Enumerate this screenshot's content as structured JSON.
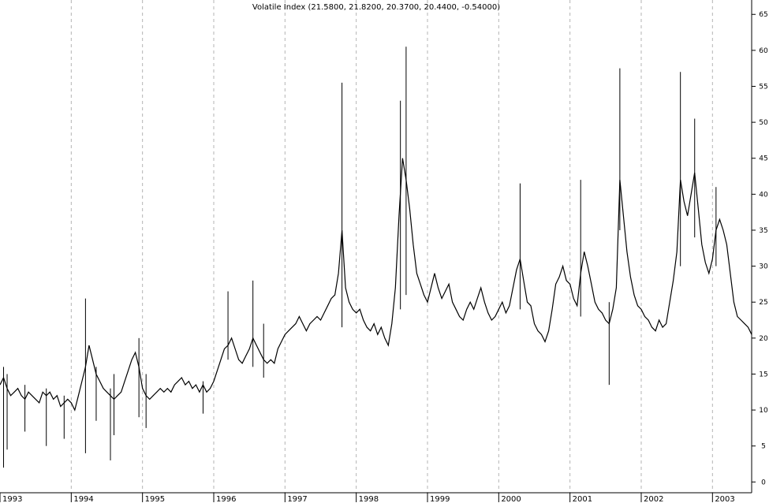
{
  "chart_data": {
    "type": "line",
    "title": "Volatile Index (21.5800, 21.8200, 20.3700, 20.4400, -0.54000)",
    "xlabel": "",
    "ylabel": "",
    "x_ticks": [
      "1993",
      "1994",
      "1995",
      "1996",
      "1997",
      "1998",
      "1999",
      "2000",
      "2001",
      "2002",
      "2003"
    ],
    "x_range": [
      1993.0,
      2003.55
    ],
    "y_ticks": [
      0,
      5,
      10,
      15,
      20,
      25,
      30,
      35,
      40,
      45,
      50,
      55,
      60,
      65
    ],
    "ylim": [
      -1.5,
      67
    ],
    "grid": {
      "vertical": true,
      "horizontal": false
    },
    "axis_position": "right",
    "colors": {
      "line": "#000000",
      "grid": "#b4b4b4",
      "axis": "#000000"
    },
    "series": [
      {
        "values": [
          [
            1993.0,
            13.5
          ],
          [
            1993.05,
            14.5
          ],
          [
            1993.1,
            13.0
          ],
          [
            1993.15,
            12.0
          ],
          [
            1993.2,
            12.5
          ],
          [
            1993.25,
            13.0
          ],
          [
            1993.3,
            12.0
          ],
          [
            1993.35,
            11.5
          ],
          [
            1993.4,
            12.5
          ],
          [
            1993.45,
            12.0
          ],
          [
            1993.5,
            11.5
          ],
          [
            1993.55,
            11.0
          ],
          [
            1993.6,
            12.5
          ],
          [
            1993.65,
            12.0
          ],
          [
            1993.7,
            12.5
          ],
          [
            1993.75,
            11.5
          ],
          [
            1993.8,
            12.0
          ],
          [
            1993.85,
            10.5
          ],
          [
            1993.9,
            11.0
          ],
          [
            1993.95,
            11.5
          ],
          [
            1994.0,
            11.0
          ],
          [
            1994.05,
            10.0
          ],
          [
            1994.1,
            12.0
          ],
          [
            1994.15,
            14.0
          ],
          [
            1994.2,
            16.0
          ],
          [
            1994.25,
            19.0
          ],
          [
            1994.3,
            17.0
          ],
          [
            1994.35,
            15.0
          ],
          [
            1994.4,
            14.0
          ],
          [
            1994.45,
            13.0
          ],
          [
            1994.5,
            12.5
          ],
          [
            1994.55,
            12.0
          ],
          [
            1994.6,
            11.5
          ],
          [
            1994.65,
            12.0
          ],
          [
            1994.7,
            12.5
          ],
          [
            1994.75,
            14.0
          ],
          [
            1994.8,
            15.5
          ],
          [
            1994.85,
            17.0
          ],
          [
            1994.9,
            18.0
          ],
          [
            1994.95,
            16.0
          ],
          [
            1995.0,
            13.0
          ],
          [
            1995.05,
            12.0
          ],
          [
            1995.1,
            11.5
          ],
          [
            1995.15,
            12.0
          ],
          [
            1995.2,
            12.5
          ],
          [
            1995.25,
            13.0
          ],
          [
            1995.3,
            12.5
          ],
          [
            1995.35,
            13.0
          ],
          [
            1995.4,
            12.5
          ],
          [
            1995.45,
            13.5
          ],
          [
            1995.5,
            14.0
          ],
          [
            1995.55,
            14.5
          ],
          [
            1995.6,
            13.5
          ],
          [
            1995.65,
            14.0
          ],
          [
            1995.7,
            13.0
          ],
          [
            1995.75,
            13.5
          ],
          [
            1995.8,
            12.5
          ],
          [
            1995.85,
            13.5
          ],
          [
            1995.9,
            12.5
          ],
          [
            1995.95,
            13.0
          ],
          [
            1996.0,
            14.0
          ],
          [
            1996.05,
            15.5
          ],
          [
            1996.1,
            17.0
          ],
          [
            1996.15,
            18.5
          ],
          [
            1996.2,
            19.0
          ],
          [
            1996.25,
            20.0
          ],
          [
            1996.3,
            18.5
          ],
          [
            1996.35,
            17.0
          ],
          [
            1996.4,
            16.5
          ],
          [
            1996.45,
            17.5
          ],
          [
            1996.5,
            18.5
          ],
          [
            1996.55,
            20.0
          ],
          [
            1996.6,
            19.0
          ],
          [
            1996.65,
            18.0
          ],
          [
            1996.7,
            17.0
          ],
          [
            1996.75,
            16.5
          ],
          [
            1996.8,
            17.0
          ],
          [
            1996.85,
            16.5
          ],
          [
            1996.9,
            18.5
          ],
          [
            1996.95,
            19.5
          ],
          [
            1997.0,
            20.5
          ],
          [
            1997.05,
            21.0
          ],
          [
            1997.1,
            21.5
          ],
          [
            1997.15,
            22.0
          ],
          [
            1997.2,
            23.0
          ],
          [
            1997.25,
            22.0
          ],
          [
            1997.3,
            21.0
          ],
          [
            1997.35,
            22.0
          ],
          [
            1997.4,
            22.5
          ],
          [
            1997.45,
            23.0
          ],
          [
            1997.5,
            22.5
          ],
          [
            1997.55,
            23.5
          ],
          [
            1997.6,
            24.5
          ],
          [
            1997.65,
            25.5
          ],
          [
            1997.7,
            26.0
          ],
          [
            1997.75,
            29.0
          ],
          [
            1997.8,
            35.0
          ],
          [
            1997.85,
            27.0
          ],
          [
            1997.9,
            25.0
          ],
          [
            1997.95,
            24.0
          ],
          [
            1998.0,
            23.5
          ],
          [
            1998.05,
            24.0
          ],
          [
            1998.1,
            22.5
          ],
          [
            1998.15,
            21.5
          ],
          [
            1998.2,
            21.0
          ],
          [
            1998.25,
            22.0
          ],
          [
            1998.3,
            20.5
          ],
          [
            1998.35,
            21.5
          ],
          [
            1998.4,
            20.0
          ],
          [
            1998.45,
            19.0
          ],
          [
            1998.5,
            22.0
          ],
          [
            1998.55,
            27.0
          ],
          [
            1998.6,
            37.0
          ],
          [
            1998.65,
            45.0
          ],
          [
            1998.7,
            42.0
          ],
          [
            1998.75,
            38.0
          ],
          [
            1998.8,
            33.0
          ],
          [
            1998.85,
            29.0
          ],
          [
            1998.9,
            27.5
          ],
          [
            1998.95,
            26.0
          ],
          [
            1999.0,
            25.0
          ],
          [
            1999.05,
            27.0
          ],
          [
            1999.1,
            29.0
          ],
          [
            1999.15,
            27.0
          ],
          [
            1999.2,
            25.5
          ],
          [
            1999.25,
            26.5
          ],
          [
            1999.3,
            27.5
          ],
          [
            1999.35,
            25.0
          ],
          [
            1999.4,
            24.0
          ],
          [
            1999.45,
            23.0
          ],
          [
            1999.5,
            22.5
          ],
          [
            1999.55,
            24.0
          ],
          [
            1999.6,
            25.0
          ],
          [
            1999.65,
            24.0
          ],
          [
            1999.7,
            25.5
          ],
          [
            1999.75,
            27.0
          ],
          [
            1999.8,
            25.0
          ],
          [
            1999.85,
            23.5
          ],
          [
            1999.9,
            22.5
          ],
          [
            1999.95,
            23.0
          ],
          [
            2000.0,
            24.0
          ],
          [
            2000.05,
            25.0
          ],
          [
            2000.1,
            23.5
          ],
          [
            2000.15,
            24.5
          ],
          [
            2000.2,
            27.0
          ],
          [
            2000.25,
            29.5
          ],
          [
            2000.3,
            31.0
          ],
          [
            2000.35,
            28.0
          ],
          [
            2000.4,
            25.0
          ],
          [
            2000.45,
            24.5
          ],
          [
            2000.5,
            22.0
          ],
          [
            2000.55,
            21.0
          ],
          [
            2000.6,
            20.5
          ],
          [
            2000.65,
            19.5
          ],
          [
            2000.7,
            21.0
          ],
          [
            2000.75,
            24.0
          ],
          [
            2000.8,
            27.5
          ],
          [
            2000.85,
            28.5
          ],
          [
            2000.9,
            30.0
          ],
          [
            2000.95,
            28.0
          ],
          [
            2001.0,
            27.5
          ],
          [
            2001.05,
            25.5
          ],
          [
            2001.1,
            24.5
          ],
          [
            2001.15,
            29.0
          ],
          [
            2001.2,
            32.0
          ],
          [
            2001.25,
            30.0
          ],
          [
            2001.3,
            27.5
          ],
          [
            2001.35,
            25.0
          ],
          [
            2001.4,
            24.0
          ],
          [
            2001.45,
            23.5
          ],
          [
            2001.5,
            22.5
          ],
          [
            2001.55,
            22.0
          ],
          [
            2001.6,
            24.0
          ],
          [
            2001.65,
            27.0
          ],
          [
            2001.7,
            42.0
          ],
          [
            2001.75,
            37.0
          ],
          [
            2001.8,
            32.0
          ],
          [
            2001.85,
            28.5
          ],
          [
            2001.9,
            26.0
          ],
          [
            2001.95,
            24.5
          ],
          [
            2002.0,
            24.0
          ],
          [
            2002.05,
            23.0
          ],
          [
            2002.1,
            22.5
          ],
          [
            2002.15,
            21.5
          ],
          [
            2002.2,
            21.0
          ],
          [
            2002.25,
            22.5
          ],
          [
            2002.3,
            21.5
          ],
          [
            2002.35,
            22.0
          ],
          [
            2002.4,
            25.0
          ],
          [
            2002.45,
            28.0
          ],
          [
            2002.5,
            32.0
          ],
          [
            2002.55,
            42.0
          ],
          [
            2002.6,
            39.0
          ],
          [
            2002.65,
            37.0
          ],
          [
            2002.7,
            40.0
          ],
          [
            2002.75,
            43.0
          ],
          [
            2002.8,
            38.0
          ],
          [
            2002.85,
            33.0
          ],
          [
            2002.9,
            30.5
          ],
          [
            2002.95,
            29.0
          ],
          [
            2003.0,
            31.0
          ],
          [
            2003.05,
            35.0
          ],
          [
            2003.1,
            36.5
          ],
          [
            2003.15,
            35.0
          ],
          [
            2003.2,
            33.0
          ],
          [
            2003.25,
            29.0
          ],
          [
            2003.3,
            25.0
          ],
          [
            2003.35,
            23.0
          ],
          [
            2003.4,
            22.5
          ],
          [
            2003.45,
            22.0
          ],
          [
            2003.5,
            21.5
          ],
          [
            2003.55,
            20.5
          ]
        ]
      }
    ],
    "spikes": [
      [
        1993.05,
        16.0,
        2.0
      ],
      [
        1993.1,
        15.0,
        4.5
      ],
      [
        1993.35,
        13.5,
        7.0
      ],
      [
        1993.65,
        13.0,
        5.0
      ],
      [
        1993.9,
        12.0,
        6.0
      ],
      [
        1994.2,
        25.5,
        4.0
      ],
      [
        1994.35,
        16.0,
        8.5
      ],
      [
        1994.55,
        13.0,
        3.0
      ],
      [
        1994.6,
        15.0,
        6.5
      ],
      [
        1994.95,
        20.0,
        9.0
      ],
      [
        1995.05,
        15.0,
        7.5
      ],
      [
        1995.85,
        14.0,
        9.5
      ],
      [
        1996.2,
        26.5,
        17.0
      ],
      [
        1996.55,
        28.0,
        16.0
      ],
      [
        1996.7,
        22.0,
        14.5
      ],
      [
        1997.8,
        55.5,
        21.5
      ],
      [
        1998.62,
        53.0,
        24.0
      ],
      [
        1998.7,
        60.5,
        26.0
      ],
      [
        2000.3,
        41.5,
        24.0
      ],
      [
        2001.15,
        42.0,
        23.0
      ],
      [
        2001.55,
        25.0,
        13.5
      ],
      [
        2001.7,
        57.5,
        35.0
      ],
      [
        2002.55,
        57.0,
        30.0
      ],
      [
        2002.75,
        50.5,
        34.0
      ],
      [
        2003.05,
        41.0,
        30.0
      ]
    ]
  }
}
